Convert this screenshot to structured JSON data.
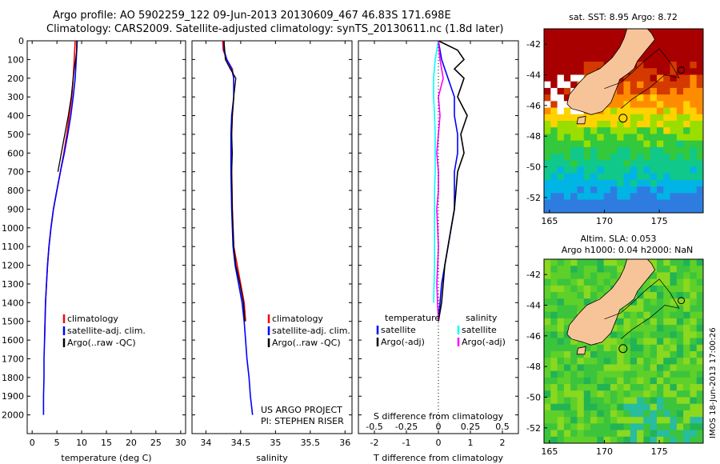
{
  "title_line1": "Argo profile: AO 5902259_122 09-Jun-2013 20130609_467 46.83S 171.698E",
  "title_line2": "Climatology: CARS2009. Satellite-adjusted climatology: synTS_20130611.nc (1.8d later)",
  "side_text": "IMOS 18-Jun-2013 17:00:26",
  "colors": {
    "climatology": "#ff0000",
    "satellite": "#0000ff",
    "argo": "#000000",
    "sal_satellite": "#00ffff",
    "sal_argo": "#ff00ff"
  },
  "chart_data": [
    {
      "id": "temperature",
      "type": "line",
      "xlabel": "temperature (deg C)",
      "ylabel": "",
      "xlim": [
        -1,
        31
      ],
      "ylim": [
        2100,
        0
      ],
      "xticks": [
        "0",
        "5",
        "10",
        "15",
        "20",
        "25",
        "30"
      ],
      "yticks": [
        "0",
        "100",
        "200",
        "300",
        "400",
        "500",
        "600",
        "700",
        "800",
        "900",
        "1000",
        "1100",
        "1200",
        "1300",
        "1400",
        "1500",
        "1600",
        "1700",
        "1800",
        "1900",
        "2000"
      ],
      "legend": [
        "climatology",
        "satellite-adj. clim.",
        "Argo(..raw -QC)"
      ],
      "series": [
        {
          "name": "climatology",
          "color": "#ff0000",
          "x": [
            8.7,
            8.5,
            8.3,
            8.0,
            7.5,
            7.0,
            6.4,
            5.7,
            5.0,
            4.3,
            3.8,
            3.4,
            3.1,
            2.9,
            2.7,
            2.6,
            2.5
          ],
          "y": [
            0,
            100,
            200,
            300,
            400,
            500,
            600,
            700,
            800,
            900,
            1000,
            1100,
            1200,
            1300,
            1400,
            1500,
            1600
          ]
        },
        {
          "name": "satellite-adj. clim.",
          "color": "#0000ff",
          "x": [
            9.1,
            8.9,
            8.7,
            8.3,
            7.8,
            7.2,
            6.5,
            5.7,
            5.0,
            4.3,
            3.8,
            3.4,
            3.1,
            2.9,
            2.7,
            2.6,
            2.5,
            2.4,
            2.4,
            2.3,
            2.3
          ],
          "y": [
            0,
            100,
            200,
            300,
            400,
            500,
            600,
            700,
            800,
            900,
            1000,
            1100,
            1200,
            1300,
            1400,
            1500,
            1600,
            1700,
            1800,
            1900,
            2000
          ]
        },
        {
          "name": "Argo(..raw -QC)",
          "color": "#000000",
          "x": [
            9.0,
            9.0,
            8.8,
            8.5,
            8.3,
            7.9,
            7.3,
            6.6,
            5.9,
            5.2
          ],
          "y": [
            0,
            50,
            100,
            150,
            200,
            300,
            400,
            500,
            600,
            700
          ]
        }
      ]
    },
    {
      "id": "salinity",
      "type": "line",
      "xlabel": "salinity",
      "ylabel": "",
      "xlim": [
        33.8,
        36.1
      ],
      "ylim": [
        2100,
        0
      ],
      "xticks": [
        "34",
        "34.5",
        "35",
        "35.5",
        "36"
      ],
      "legend": [
        "climatology",
        "satellite-adj. clim.",
        "Argo(..raw -QC)"
      ],
      "annotations": [
        "US ARGO PROJECT",
        "PI: STEPHEN RISER"
      ],
      "series": [
        {
          "name": "climatology",
          "color": "#ff0000",
          "x": [
            34.24,
            34.25,
            34.3,
            34.38,
            34.4,
            34.4,
            34.38,
            34.37,
            34.37,
            34.37,
            34.38,
            34.4,
            34.45,
            34.5,
            34.55,
            34.57
          ],
          "y": [
            0,
            50,
            100,
            150,
            200,
            300,
            400,
            500,
            600,
            700,
            900,
            1100,
            1200,
            1300,
            1400,
            1500
          ]
        },
        {
          "name": "satellite-adj. clim.",
          "color": "#0000ff",
          "x": [
            34.26,
            34.26,
            34.3,
            34.37,
            34.4,
            34.4,
            34.37,
            34.36,
            34.36,
            34.36,
            34.37,
            34.39,
            34.42,
            34.47,
            34.52,
            34.55,
            34.57,
            34.59,
            34.62,
            34.64,
            34.67
          ],
          "y": [
            0,
            50,
            100,
            150,
            200,
            300,
            400,
            500,
            600,
            700,
            900,
            1100,
            1200,
            1300,
            1400,
            1500,
            1600,
            1700,
            1800,
            1900,
            2000
          ]
        },
        {
          "name": "Argo(..raw -QC)",
          "color": "#000000",
          "x": [
            34.26,
            34.27,
            34.28,
            34.35,
            34.43,
            34.4,
            34.38,
            34.37,
            34.38,
            34.37,
            34.38,
            34.4,
            34.43,
            34.49,
            34.54,
            34.56
          ],
          "y": [
            0,
            50,
            100,
            150,
            200,
            300,
            400,
            500,
            600,
            700,
            900,
            1100,
            1200,
            1300,
            1400,
            1500
          ]
        }
      ]
    },
    {
      "id": "difference",
      "type": "line",
      "xlabel": "T difference from climatology",
      "xlabel_top": "S difference from climatology",
      "xlim": [
        -2.5,
        2.5
      ],
      "ylim": [
        2100,
        0
      ],
      "xticks": [
        "-2",
        "-1",
        "0",
        "1",
        "2"
      ],
      "xticks_secondary": [
        "-0.5",
        "-0.25",
        "0",
        "0.25",
        "0.5"
      ],
      "legend_titles": [
        "temperature",
        "salinity"
      ],
      "legend": [
        "satellite",
        "Argo(-adj)",
        "satellite",
        "Argo(-adj)"
      ],
      "series": [
        {
          "name": "temperature satellite",
          "color": "#0000ff",
          "x": [
            0.0,
            0.1,
            0.3,
            0.5,
            0.5,
            0.6,
            0.6,
            0.5,
            0.5,
            0.5,
            0.4,
            0.3,
            0.2,
            0.1,
            0.05,
            0.0
          ],
          "y": [
            0,
            100,
            200,
            300,
            400,
            500,
            600,
            700,
            800,
            900,
            1000,
            1100,
            1200,
            1300,
            1400,
            1500
          ]
        },
        {
          "name": "temperature Argo(-adj)",
          "color": "#000000",
          "x": [
            0.0,
            0.6,
            0.8,
            0.5,
            0.8,
            0.6,
            0.9,
            0.7,
            0.8,
            0.6,
            0.5,
            0.4,
            0.3,
            0.2,
            0.1,
            0.0
          ],
          "y": [
            0,
            50,
            100,
            150,
            200,
            300,
            400,
            500,
            600,
            700,
            900,
            1000,
            1100,
            1200,
            1400,
            1500
          ]
        },
        {
          "name": "salinity satellite",
          "color": "#00ffff",
          "x": [
            0.0,
            -0.1,
            -0.15,
            -0.15,
            -0.12,
            -0.1,
            -0.1,
            -0.1,
            -0.12,
            -0.12,
            -0.12,
            -0.12,
            -0.15
          ],
          "y": [
            0,
            100,
            200,
            300,
            400,
            500,
            600,
            700,
            800,
            900,
            1000,
            1200,
            1400
          ]
        },
        {
          "name": "salinity Argo(-adj)",
          "color": "#ff00ff",
          "x": [
            0.0,
            0.05,
            0.15,
            0.0,
            0.05,
            0.0,
            -0.05,
            0.0,
            0.0,
            -0.05,
            0.0,
            -0.05,
            0.0
          ],
          "y": [
            0,
            100,
            200,
            300,
            400,
            500,
            600,
            700,
            800,
            900,
            1100,
            1300,
            1500
          ]
        }
      ]
    },
    {
      "id": "sst-map",
      "type": "heatmap",
      "title": "sat. SST: 8.95 Argo: 8.72",
      "xlim": [
        164.5,
        179
      ],
      "ylim": [
        -53,
        -41
      ],
      "xticks": [
        "165",
        "170",
        "175"
      ],
      "yticks": [
        "-42",
        "-44",
        "-46",
        "-48",
        "-50",
        "-52"
      ]
    },
    {
      "id": "sla-map",
      "type": "heatmap",
      "title": "Altim. SLA: 0.053",
      "subtitle": "Argo h1000: 0.04 h2000: NaN",
      "xlim": [
        164.5,
        179
      ],
      "ylim": [
        -53,
        -41
      ],
      "xticks": [
        "165",
        "170",
        "175"
      ],
      "yticks": [
        "-42",
        "-44",
        "-46",
        "-48",
        "-50",
        "-52"
      ]
    }
  ]
}
